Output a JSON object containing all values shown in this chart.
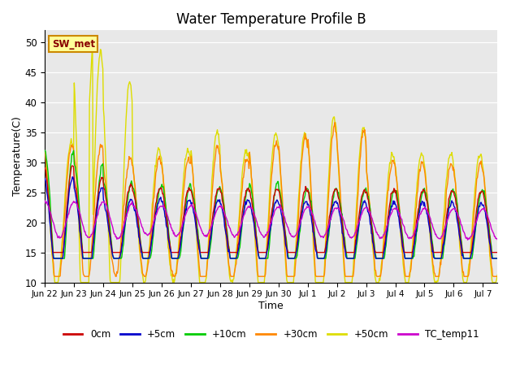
{
  "title": "Water Temperature Profile B",
  "xlabel": "Time",
  "ylabel": "Temperature(C)",
  "ylim": [
    10,
    52
  ],
  "xlim_start": 0,
  "xlim_end": 15.5,
  "series": [
    "0cm",
    "+5cm",
    "+10cm",
    "+30cm",
    "+50cm",
    "TC_temp11"
  ],
  "colors": [
    "#cc0000",
    "#0000cc",
    "#00cc00",
    "#ff8800",
    "#dddd00",
    "#cc00cc"
  ],
  "legend_label": "SW_met",
  "legend_box_color": "#ffff99",
  "legend_box_edge": "#cc8800",
  "background_color": "#e8e8e8",
  "tick_labels": [
    "Jun 22",
    "Jun 23",
    "Jun 24",
    "Jun 25",
    "Jun 26",
    "Jun 27",
    "Jun 28",
    "Jun 29",
    "Jun 30",
    "Jul 1",
    "Jul 2",
    "Jul 3",
    "Jul 4",
    "Jul 5",
    "Jul 6",
    "Jul 7"
  ],
  "tick_positions": [
    0,
    1,
    2,
    3,
    4,
    5,
    6,
    7,
    8,
    9,
    10,
    11,
    12,
    13,
    14,
    15
  ],
  "yticks": [
    10,
    15,
    20,
    25,
    30,
    35,
    40,
    45,
    50
  ],
  "line_width": 1.0,
  "figsize": [
    6.4,
    4.8
  ],
  "dpi": 100
}
